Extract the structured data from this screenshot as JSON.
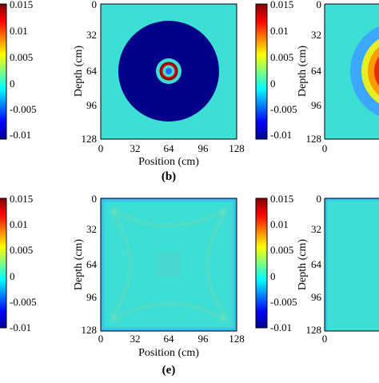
{
  "colorbar": {
    "ticks": [
      "0.015",
      "0.01",
      "0.005",
      "0",
      "-0.005",
      "-0.01"
    ],
    "tick_values": [
      0.015,
      0.01,
      0.005,
      0,
      -0.005,
      -0.01
    ],
    "range": [
      -0.01,
      0.015
    ],
    "colormap": "jet",
    "colors": [
      "#00008f",
      "#0000ff",
      "#00ffff",
      "#ffff00",
      "#ff0000",
      "#800000"
    ]
  },
  "panels": [
    {
      "id": "b",
      "label": "(b)",
      "xlabel": "Position (cm)",
      "ylabel": "Depth (cm)",
      "xticks": [
        "0",
        "32",
        "64",
        "96",
        "128"
      ],
      "yticks": [
        "0",
        "32",
        "64",
        "96",
        "128"
      ],
      "background": "#3ddfd5",
      "disk_color": "#000088"
    },
    {
      "id": "e",
      "label": "(e)",
      "xlabel": "Position (cm)",
      "ylabel": "Depth (cm)",
      "xticks": [
        "0",
        "32",
        "64",
        "96",
        "128"
      ],
      "yticks": [
        "0",
        "32",
        "64",
        "96",
        "128"
      ],
      "background": "#3ddfd5"
    }
  ],
  "chart_data": [
    {
      "type": "heatmap",
      "panel": "(b)",
      "xlabel": "Position (cm)",
      "ylabel": "Depth (cm)",
      "xlim": [
        0,
        128
      ],
      "ylim": [
        128,
        0
      ],
      "xticks": [
        0,
        32,
        64,
        96,
        128
      ],
      "yticks": [
        0,
        32,
        64,
        96,
        128
      ],
      "colorbar_range": [
        -0.01,
        0.015
      ],
      "features": [
        {
          "shape": "disk",
          "center": [
            64,
            64
          ],
          "radius": 47,
          "value": -0.01
        },
        {
          "shape": "ring",
          "center": [
            64,
            64
          ],
          "radius": 12,
          "value": 0.003
        },
        {
          "shape": "ring",
          "center": [
            64,
            64
          ],
          "radius": 8.5,
          "value": 0.014
        },
        {
          "shape": "ring",
          "center": [
            64,
            64
          ],
          "radius": 5.5,
          "value": 0.0
        },
        {
          "shape": "disk",
          "center": [
            64,
            64
          ],
          "radius": 3,
          "value": -0.006
        }
      ],
      "background_value": 0.0
    },
    {
      "type": "heatmap",
      "panel": "(e)",
      "xlabel": "Position (cm)",
      "ylabel": "Depth (cm)",
      "xlim": [
        0,
        128
      ],
      "ylim": [
        128,
        0
      ],
      "xticks": [
        0,
        32,
        64,
        96,
        128
      ],
      "yticks": [
        0,
        32,
        64,
        96,
        128
      ],
      "colorbar_range": [
        -0.01,
        0.015
      ],
      "background_value": 0.0
    }
  ]
}
